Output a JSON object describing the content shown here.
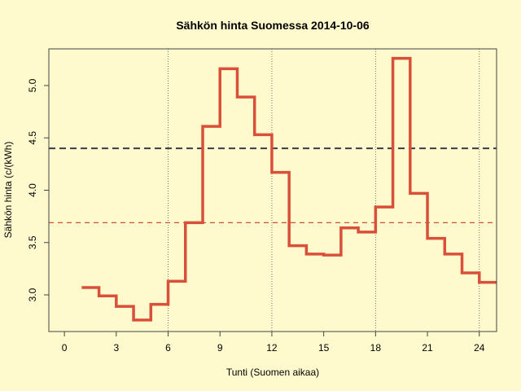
{
  "chart_data": {
    "type": "line",
    "step": true,
    "title": "Sähkön hinta Suomessa 2014-10-06",
    "xlabel": "Tunti (Suomen aikaa)",
    "ylabel": "Sähkön hinta (c/(kWh)",
    "xlim": [
      -0.9,
      25
    ],
    "ylim": [
      2.65,
      5.35
    ],
    "xticks": [
      0,
      3,
      6,
      9,
      12,
      15,
      18,
      21,
      24
    ],
    "yticks": [
      "3.0",
      "3.5",
      "4.0",
      "4.5",
      "5.0"
    ],
    "vertical_gridlines": [
      6,
      12,
      18,
      24
    ],
    "x": [
      1,
      2,
      3,
      4,
      5,
      6,
      7,
      8,
      9,
      10,
      11,
      12,
      13,
      14,
      15,
      16,
      17,
      18,
      19,
      20,
      21,
      22,
      23,
      24,
      25
    ],
    "values": [
      3.07,
      2.99,
      2.89,
      2.76,
      2.91,
      3.13,
      3.69,
      4.61,
      5.16,
      4.89,
      4.53,
      4.17,
      3.47,
      3.39,
      3.38,
      3.64,
      3.6,
      3.84,
      5.26,
      3.97,
      3.54,
      3.39,
      3.21,
      3.12,
      3.12
    ],
    "reference_lines": [
      {
        "y": 4.4,
        "color": "#3a3a48",
        "style": "dashed"
      },
      {
        "y": 3.69,
        "color": "#c8503c",
        "style": "dashed"
      }
    ],
    "line_color": "#d9503a",
    "background": "#fffacd"
  }
}
